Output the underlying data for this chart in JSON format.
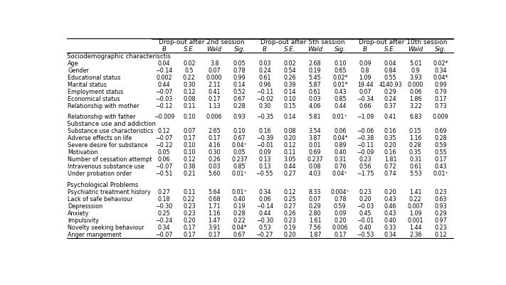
{
  "rows": [
    [
      "Age",
      "0.04",
      "0.02",
      "3.8",
      "0.05",
      "0.03",
      "0.02",
      "2.68",
      "0.10",
      "0.09",
      "0.04",
      "5.01",
      "0.02*"
    ],
    [
      "Gender",
      "−0.14",
      "0.5",
      "0.07",
      "0.78",
      "0.24",
      "0.54",
      "0.19",
      "0.65",
      "0.8",
      "0.84",
      "0.9",
      "0.34"
    ],
    [
      "Educational status",
      "0.002",
      "0.22",
      "0.000",
      "0.99",
      "0.61",
      "0.26",
      "5.45",
      "0.02*",
      "1.09",
      "0.55",
      "3.93",
      "0.04*"
    ],
    [
      "Marital status",
      "0.44",
      "0.30",
      "2.11",
      "0.14",
      "0.96",
      "0.39",
      "5.87",
      "0.01*",
      "19.44",
      "4140.93",
      "0.000",
      "0.99"
    ],
    [
      "Employment status",
      "−0.07",
      "0.12",
      "0.41",
      "0.52",
      "−0.11",
      "0.14",
      "0.61",
      "0.43",
      "0.07",
      "0.29",
      "0.06",
      "0.79"
    ],
    [
      "Economical status",
      "−0.03",
      "0.08",
      "0.17",
      "0.67",
      "−0.02",
      "0.10",
      "0.03",
      "0.85",
      "−0.34",
      "0.24",
      "1.86",
      "0.17"
    ],
    [
      "Relationship with mother",
      "−0.12",
      "0.11",
      "1.13",
      "0.28",
      "0.30",
      "0.15",
      "4.06",
      "0.44",
      "0.66",
      "0.37",
      "3.22",
      "0.73"
    ],
    [
      "Relationship with father",
      "−0.009",
      "0.10",
      "0.006",
      "0.93",
      "−0.35",
      "0.14",
      "5.81",
      "0.01⁺",
      "−1.09",
      "0.41",
      "6.83",
      "0.009"
    ],
    [
      "Substance use characteristics",
      "0.12",
      "0.07",
      "2.65",
      "0.10",
      "0.16",
      "0.08",
      "3.54",
      "0.06",
      "−0.06",
      "0.16",
      "0.15",
      "0.69"
    ],
    [
      "Adverse effects on life",
      "−0.07",
      "0.17",
      "0.17",
      "0.67",
      "−0.39",
      "0.20",
      "3.87",
      "0.04*",
      "−0.38",
      "0.35",
      "1.16",
      "0.28"
    ],
    [
      "Severe desire for substance",
      "−0.22",
      "0.10",
      "4.16",
      "0.04⁺",
      "−0.01",
      "0.12",
      "0.01",
      "0.89",
      "−0.11",
      "0.20",
      "0.28",
      "0.59"
    ],
    [
      "Motivation",
      "0.05",
      "0.10",
      "0.30",
      "0.05",
      "0.09",
      "0.11",
      "0.69",
      "0.40",
      "−0.09",
      "0.16",
      "0.35",
      "0.55"
    ],
    [
      "Number of cessation attempt",
      "0.06",
      "0.12",
      "0.26",
      "0.237",
      "0.13",
      "3.05",
      "0.237",
      "0.31",
      "0.23",
      "1.81",
      "0.31",
      "0.17"
    ],
    [
      "Intravenous substance use",
      "−0.07",
      "0.38",
      "0.03",
      "0.85",
      "0.13",
      "0.44",
      "0.08",
      "0.76",
      "0.56",
      "0.72",
      "0.61",
      "0.43"
    ],
    [
      "Under probation order",
      "−0.51",
      "0.21",
      "5.60",
      "0.01⁺",
      "−0.55",
      "0.27",
      "4.03",
      "0.04⁺",
      "−1.75",
      "0.74",
      "5.53",
      "0.01⁺"
    ],
    [
      "Psychiatric treatment history",
      "0.27",
      "0.11",
      "5.64",
      "0.01⁺",
      "0.34",
      "0.12",
      "8.33",
      "0.004⁺",
      "0.23",
      "0.20",
      "1.41",
      "0.23"
    ],
    [
      "Lack of safe behaviour",
      "0.18",
      "0.22",
      "0.68",
      "0.40",
      "0.06",
      "0.25",
      "0.07",
      "0.78",
      "0.20",
      "0.43",
      "0.22",
      "0.63"
    ],
    [
      "Depresssion",
      "−0.30",
      "0.23",
      "1.71",
      "0.19",
      "−0.14",
      "0.27",
      "0.29",
      "0.59",
      "−0.03",
      "0.46",
      "0.007",
      "0.93"
    ],
    [
      "Anxiety",
      "0.25",
      "0.23",
      "1.16",
      "0.28",
      "0.44",
      "0.26",
      "2.80",
      "0.09",
      "0.45",
      "0.43",
      "1.09",
      "0.29"
    ],
    [
      "Impulsivity",
      "−0.24",
      "0.20",
      "1.47",
      "0.22",
      "−0.30",
      "0.23",
      "1.61",
      "0.20",
      "−0.01",
      "0.40",
      "0.001",
      "0.97"
    ],
    [
      "Novelty seeking behaviour",
      "0.34",
      "0.17",
      "3.91",
      "0.04*",
      "0.53",
      "0.19",
      "7.56",
      "0.006",
      "0.40",
      "0.33",
      "1.44",
      "0.23"
    ],
    [
      "Anger mangement",
      "−0.07",
      "0.17",
      "0.17",
      "0.67",
      "−0.27",
      "0.20",
      "1.87",
      "0.17",
      "−0.53",
      "0.34",
      "2.36",
      "0.12"
    ]
  ],
  "group_labels": [
    "Drop-out after 2nd session",
    "Drop-out after 5th session",
    "Drop-out after 10th session"
  ],
  "col_sub_labels": [
    "B",
    "S.E.",
    "Wald",
    "Sig.",
    "B",
    "S.E.",
    "Wald",
    "Sig.",
    "B",
    "S.E.",
    "Wald",
    "Sig."
  ],
  "section1_label": "Sociodemographic characterisctis",
  "section2_label": "Substance use and addiction",
  "section3_label": "Psychological Problems",
  "bg_color": "#ffffff",
  "text_color": "#000000"
}
